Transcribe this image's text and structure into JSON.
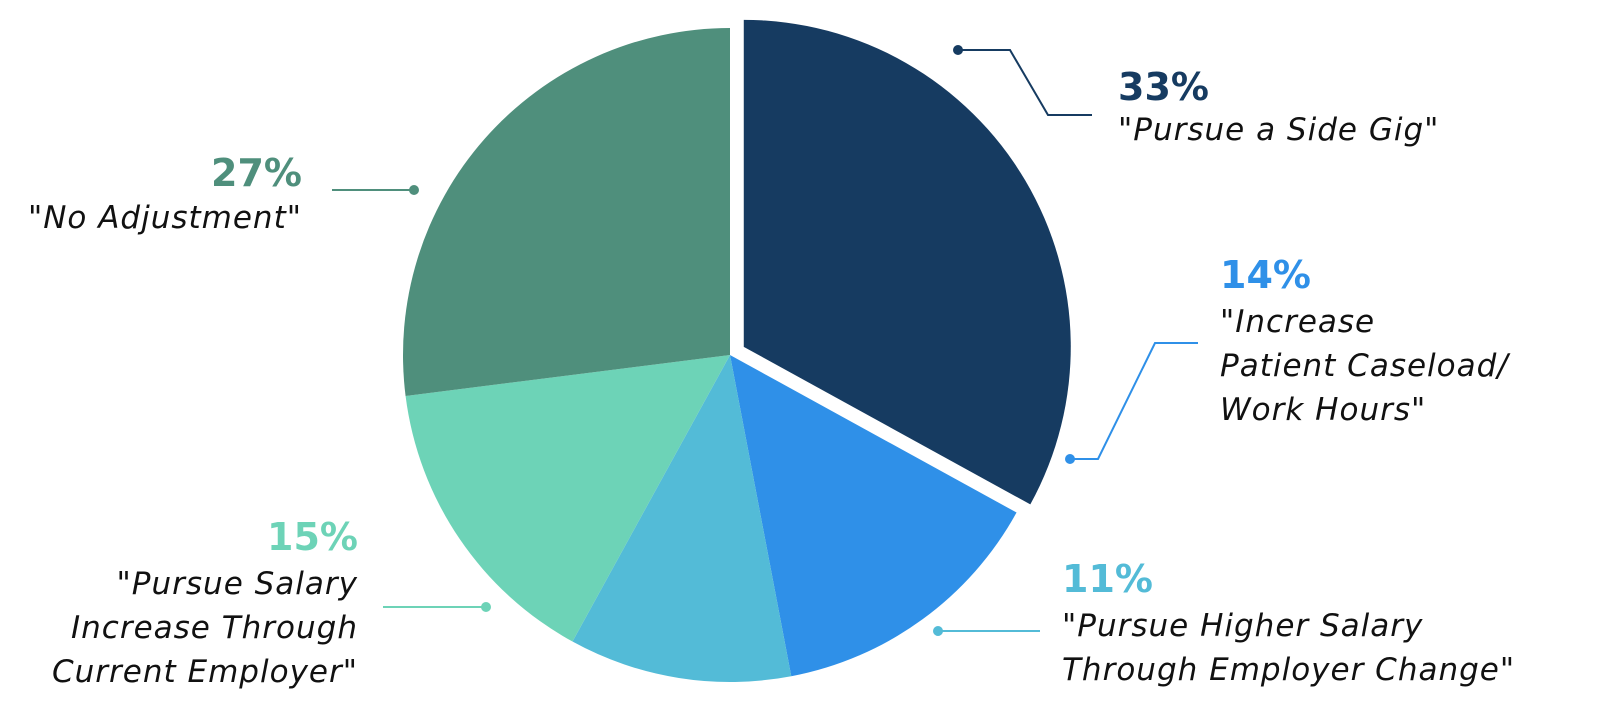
{
  "chart_data": {
    "type": "pie",
    "title": "",
    "start_angle_deg": 270,
    "exploded_slice": 0,
    "slices": [
      {
        "name": "\"Pursue a Side Gig\"",
        "value": 33,
        "pct_label": "33%",
        "label_lines": [
          "\"Pursue a Side Gig\""
        ],
        "color": "#163b61"
      },
      {
        "name": "\"Increase Patient Caseload/ Work Hours\"",
        "value": 14,
        "pct_label": "14%",
        "label_lines": [
          "\"Increase",
          "Patient Caseload/",
          "Work Hours\""
        ],
        "color": "#2f90e8"
      },
      {
        "name": "\"Pursue Higher Salary Through Employer Change\"",
        "value": 11,
        "pct_label": "11%",
        "label_lines": [
          "\"Pursue Higher Salary",
          "Through Employer Change\""
        ],
        "color": "#53bbd7"
      },
      {
        "name": "\"Pursue Salary Increase Through Current Employer\"",
        "value": 15,
        "pct_label": "15%",
        "label_lines": [
          "\"Pursue Salary",
          "Increase Through",
          "Current Employer\""
        ],
        "color": "#6dd3b7"
      },
      {
        "name": "\"No Adjustment\"",
        "value": 27,
        "pct_label": "27%",
        "label_lines": [
          "\"No Adjustment\""
        ],
        "color": "#4f8f7c"
      }
    ]
  }
}
